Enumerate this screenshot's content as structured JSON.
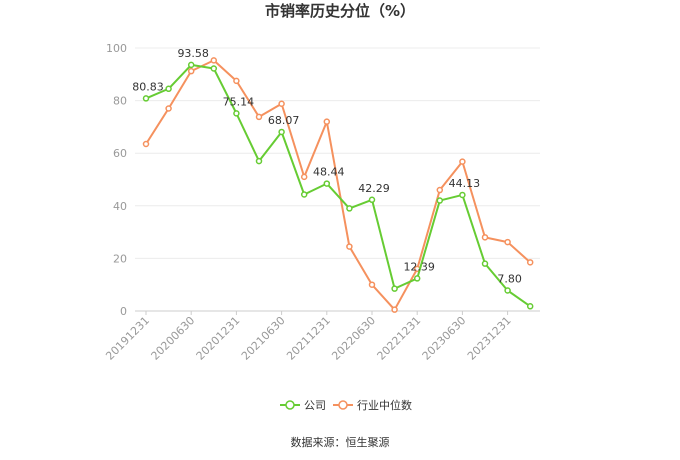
{
  "chart_data": {
    "type": "line",
    "title": "市销率历史分位（%）",
    "xlabel": "",
    "ylabel": "",
    "ylim": [
      0,
      100
    ],
    "yticks": [
      0,
      20,
      40,
      60,
      80,
      100
    ],
    "grid": true,
    "legend_position": "bottom",
    "x_tick_labels": [
      "20191231",
      "20200630",
      "20201231",
      "20210630",
      "20211231",
      "20220630",
      "20221231",
      "20230630",
      "20231231"
    ],
    "x": [
      "20191231",
      "20200331",
      "20200630",
      "20200930",
      "20201231",
      "20210331",
      "20210630",
      "20210930",
      "20211231",
      "20220331",
      "20220630",
      "20220930",
      "20221231",
      "20230331",
      "20230630",
      "20230930",
      "20231231",
      "20240331"
    ],
    "series": [
      {
        "name": "公司",
        "color": "#66cc33",
        "values": [
          80.83,
          84.5,
          93.58,
          92.2,
          75.14,
          57.0,
          68.07,
          44.3,
          48.44,
          39.0,
          42.29,
          8.5,
          12.39,
          42.0,
          44.13,
          18.0,
          7.8,
          1.8
        ],
        "labels": [
          "80.83",
          "",
          "93.58",
          "",
          "75.14",
          "",
          "68.07",
          "",
          "48.44",
          "",
          "42.29",
          "",
          "12.39",
          "",
          "44.13",
          "",
          "7.80",
          ""
        ]
      },
      {
        "name": "行业中位数",
        "color": "#f5915e",
        "values": [
          63.5,
          77.0,
          91.2,
          95.3,
          87.5,
          73.8,
          78.8,
          51.0,
          72.0,
          24.5,
          10.0,
          0.5,
          16.0,
          46.0,
          56.8,
          28.0,
          26.2,
          18.5
        ]
      }
    ]
  },
  "source_text": "数据来源：恒生聚源"
}
